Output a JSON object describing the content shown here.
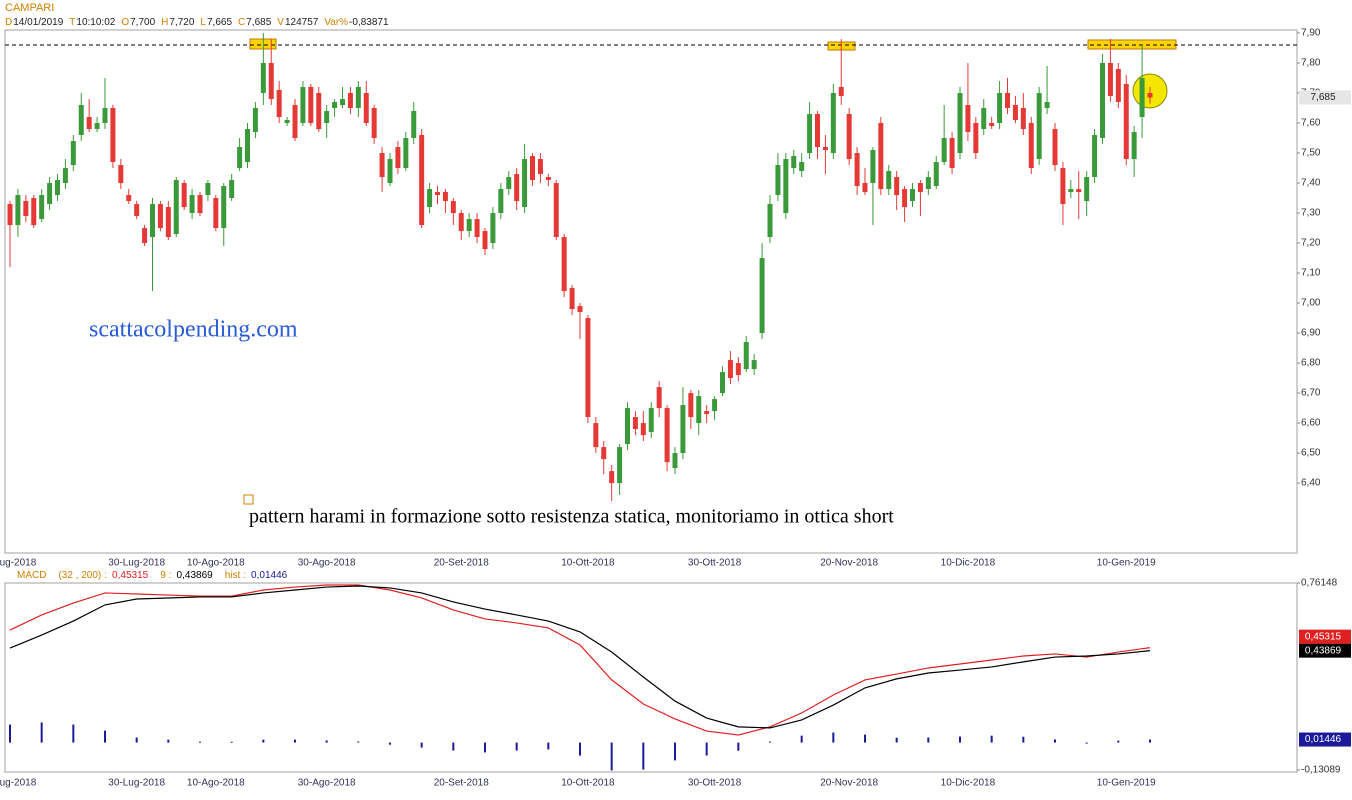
{
  "chart_data": [
    {
      "type": "candlestick",
      "title": "CAMPARI",
      "info": [
        {
          "key": "D",
          "value": "14/01/2019"
        },
        {
          "key": "T",
          "value": "10:10:02"
        },
        {
          "key": "O",
          "value": "7,700"
        },
        {
          "key": "H",
          "value": "7,720"
        },
        {
          "key": "L",
          "value": "7,665"
        },
        {
          "key": "C",
          "value": "7,685"
        },
        {
          "key": "V",
          "value": "124757"
        },
        {
          "key": "Var%",
          "value": "-0,83871"
        }
      ],
      "annotations": [
        "scattacolpending.com",
        "pattern harami in formazione sotto resistenza statica, monitoriamo in ottica short"
      ],
      "up_color": "#3a9a3a",
      "down_color": "#e53935",
      "resistance": 7.86,
      "last_price": {
        "value": 7.685,
        "label": "7,685"
      },
      "ylim": [
        6.167,
        7.9
      ],
      "yticks": [
        {
          "value": 7.9,
          "label": "7,90"
        },
        {
          "value": 7.8,
          "label": "7,80"
        },
        {
          "value": 7.7,
          "label": "7,70"
        },
        {
          "value": 7.6,
          "label": "7,60"
        },
        {
          "value": 7.5,
          "label": "7,50"
        },
        {
          "value": 7.4,
          "label": "7,40"
        },
        {
          "value": 7.3,
          "label": "7,30"
        },
        {
          "value": 7.2,
          "label": "7,20"
        },
        {
          "value": 7.1,
          "label": "7,10"
        },
        {
          "value": 7.0,
          "label": "7,00"
        },
        {
          "value": 6.9,
          "label": "6,90"
        },
        {
          "value": 6.8,
          "label": "6,80"
        },
        {
          "value": 6.7,
          "label": "6,70"
        },
        {
          "value": 6.6,
          "label": "6,60"
        },
        {
          "value": 6.5,
          "label": "6,50"
        },
        {
          "value": 6.4,
          "label": "6,40"
        }
      ],
      "categories": [
        null,
        "ug-2018",
        null,
        null,
        null,
        null,
        null,
        null,
        null,
        null,
        null,
        null,
        null,
        null,
        null,
        null,
        "30-Lug-2018",
        null,
        null,
        null,
        null,
        null,
        null,
        null,
        null,
        null,
        "10-Ago-2018",
        null,
        null,
        null,
        null,
        null,
        null,
        null,
        null,
        null,
        null,
        null,
        null,
        null,
        "30-Ago-2018",
        null,
        null,
        null,
        null,
        null,
        null,
        null,
        null,
        null,
        null,
        null,
        null,
        null,
        null,
        null,
        null,
        "20-Set-2018",
        null,
        null,
        null,
        null,
        null,
        null,
        null,
        null,
        null,
        null,
        null,
        null,
        null,
        null,
        null,
        "10-Ott-2018",
        null,
        null,
        null,
        null,
        null,
        null,
        null,
        null,
        null,
        null,
        null,
        null,
        null,
        null,
        null,
        "30-Ott-2018",
        null,
        null,
        null,
        null,
        null,
        null,
        null,
        null,
        null,
        null,
        null,
        null,
        null,
        null,
        null,
        null,
        "20-Nov-2018",
        null,
        null,
        null,
        null,
        null,
        null,
        null,
        null,
        null,
        null,
        null,
        null,
        null,
        null,
        "10-Dic-2018",
        null,
        null,
        null,
        null,
        null,
        null,
        null,
        null,
        null,
        null,
        null,
        null,
        null,
        null,
        null,
        null,
        null,
        null,
        null,
        "10-Gen-2019",
        null,
        null,
        null
      ],
      "candles": [
        [
          7.33,
          7.34,
          7.12,
          7.26
        ],
        [
          7.26,
          7.38,
          7.22,
          7.36
        ],
        [
          7.34,
          7.36,
          7.27,
          7.29
        ],
        [
          7.35,
          7.36,
          7.25,
          7.26
        ],
        [
          7.28,
          7.38,
          7.27,
          7.36
        ],
        [
          7.33,
          7.42,
          7.31,
          7.4
        ],
        [
          7.36,
          7.43,
          7.34,
          7.41
        ],
        [
          7.4,
          7.48,
          7.38,
          7.45
        ],
        [
          7.46,
          7.56,
          7.44,
          7.54
        ],
        [
          7.56,
          7.7,
          7.54,
          7.66
        ],
        [
          7.62,
          7.68,
          7.57,
          7.58
        ],
        [
          7.58,
          7.62,
          7.57,
          7.6
        ],
        [
          7.6,
          7.75,
          7.58,
          7.65
        ],
        [
          7.65,
          7.66,
          7.45,
          7.47
        ],
        [
          7.46,
          7.48,
          7.38,
          7.4
        ],
        [
          7.36,
          7.38,
          7.33,
          7.34
        ],
        [
          7.33,
          7.34,
          7.28,
          7.29
        ],
        [
          7.25,
          7.26,
          7.19,
          7.2
        ],
        [
          7.22,
          7.35,
          7.04,
          7.33
        ],
        [
          7.33,
          7.34,
          7.24,
          7.25
        ],
        [
          7.32,
          7.34,
          7.21,
          7.22
        ],
        [
          7.23,
          7.42,
          7.22,
          7.41
        ],
        [
          7.4,
          7.41,
          7.31,
          7.32
        ],
        [
          7.3,
          7.38,
          7.28,
          7.36
        ],
        [
          7.36,
          7.37,
          7.29,
          7.3
        ],
        [
          7.36,
          7.41,
          7.34,
          7.4
        ],
        [
          7.35,
          7.36,
          7.24,
          7.25
        ],
        [
          7.25,
          7.4,
          7.19,
          7.39
        ],
        [
          7.35,
          7.43,
          7.34,
          7.41
        ],
        [
          7.45,
          7.55,
          7.44,
          7.52
        ],
        [
          7.47,
          7.6,
          7.45,
          7.58
        ],
        [
          7.57,
          7.67,
          7.55,
          7.65
        ],
        [
          7.7,
          7.9,
          7.66,
          7.8
        ],
        [
          7.8,
          7.88,
          7.66,
          7.68
        ],
        [
          7.71,
          7.74,
          7.6,
          7.62
        ],
        [
          7.6,
          7.62,
          7.59,
          7.61
        ],
        [
          7.66,
          7.68,
          7.54,
          7.55
        ],
        [
          7.6,
          7.74,
          7.59,
          7.72
        ],
        [
          7.72,
          7.73,
          7.59,
          7.6
        ],
        [
          7.7,
          7.72,
          7.57,
          7.58
        ],
        [
          7.6,
          7.66,
          7.55,
          7.64
        ],
        [
          7.65,
          7.68,
          7.62,
          7.67
        ],
        [
          7.66,
          7.72,
          7.65,
          7.68
        ],
        [
          7.7,
          7.72,
          7.63,
          7.65
        ],
        [
          7.65,
          7.74,
          7.62,
          7.72
        ],
        [
          7.7,
          7.74,
          7.59,
          7.6
        ],
        [
          7.65,
          7.66,
          7.53,
          7.55
        ],
        [
          7.5,
          7.52,
          7.37,
          7.42
        ],
        [
          7.4,
          7.5,
          7.39,
          7.48
        ],
        [
          7.52,
          7.54,
          7.43,
          7.45
        ],
        [
          7.45,
          7.57,
          7.44,
          7.55
        ],
        [
          7.55,
          7.67,
          7.53,
          7.64
        ],
        [
          7.56,
          7.58,
          7.25,
          7.26
        ],
        [
          7.32,
          7.4,
          7.3,
          7.38
        ],
        [
          7.37,
          7.39,
          7.33,
          7.36
        ],
        [
          7.37,
          7.38,
          7.3,
          7.34
        ],
        [
          7.34,
          7.35,
          7.26,
          7.3
        ],
        [
          7.3,
          7.31,
          7.21,
          7.24
        ],
        [
          7.24,
          7.3,
          7.22,
          7.28
        ],
        [
          7.28,
          7.3,
          7.2,
          7.22
        ],
        [
          7.24,
          7.25,
          7.16,
          7.18
        ],
        [
          7.2,
          7.32,
          7.18,
          7.3
        ],
        [
          7.3,
          7.4,
          7.28,
          7.38
        ],
        [
          7.38,
          7.44,
          7.36,
          7.42
        ],
        [
          7.43,
          7.45,
          7.31,
          7.34
        ],
        [
          7.32,
          7.53,
          7.3,
          7.48
        ],
        [
          7.49,
          7.5,
          7.39,
          7.41
        ],
        [
          7.48,
          7.5,
          7.4,
          7.43
        ],
        [
          7.42,
          7.43,
          7.39,
          7.41
        ],
        [
          7.4,
          7.41,
          7.21,
          7.22
        ],
        [
          7.22,
          7.23,
          7.02,
          7.04
        ],
        [
          7.05,
          7.06,
          6.96,
          6.98
        ],
        [
          6.99,
          7.0,
          6.88,
          6.97
        ],
        [
          6.95,
          6.96,
          6.6,
          6.62
        ],
        [
          6.6,
          6.62,
          6.5,
          6.52
        ],
        [
          6.52,
          6.54,
          6.43,
          6.48
        ],
        [
          6.44,
          6.46,
          6.34,
          6.4
        ],
        [
          6.4,
          6.53,
          6.36,
          6.52
        ],
        [
          6.53,
          6.67,
          6.51,
          6.65
        ],
        [
          6.62,
          6.64,
          6.56,
          6.58
        ],
        [
          6.6,
          6.64,
          6.54,
          6.56
        ],
        [
          6.57,
          6.67,
          6.55,
          6.65
        ],
        [
          6.72,
          6.74,
          6.62,
          6.65
        ],
        [
          6.65,
          6.66,
          6.44,
          6.47
        ],
        [
          6.45,
          6.52,
          6.43,
          6.5
        ],
        [
          6.5,
          6.72,
          6.48,
          6.66
        ],
        [
          6.7,
          6.71,
          6.58,
          6.62
        ],
        [
          6.6,
          6.71,
          6.56,
          6.69
        ],
        [
          6.64,
          6.66,
          6.6,
          6.63
        ],
        [
          6.64,
          6.69,
          6.61,
          6.68
        ],
        [
          6.7,
          6.79,
          6.69,
          6.77
        ],
        [
          6.81,
          6.84,
          6.73,
          6.75
        ],
        [
          6.8,
          6.82,
          6.74,
          6.76
        ],
        [
          6.78,
          6.89,
          6.77,
          6.87
        ],
        [
          6.78,
          6.83,
          6.76,
          6.81
        ],
        [
          6.9,
          7.2,
          6.88,
          7.15
        ],
        [
          7.22,
          7.36,
          7.2,
          7.33
        ],
        [
          7.36,
          7.5,
          7.34,
          7.46
        ],
        [
          7.3,
          7.5,
          7.28,
          7.48
        ],
        [
          7.45,
          7.51,
          7.43,
          7.49
        ],
        [
          7.44,
          7.5,
          7.42,
          7.47
        ],
        [
          7.5,
          7.67,
          7.48,
          7.63
        ],
        [
          7.63,
          7.64,
          7.48,
          7.52
        ],
        [
          7.52,
          7.56,
          7.43,
          7.51
        ],
        [
          7.5,
          7.73,
          7.48,
          7.7
        ],
        [
          7.72,
          7.88,
          7.66,
          7.69
        ],
        [
          7.63,
          7.65,
          7.46,
          7.48
        ],
        [
          7.5,
          7.52,
          7.36,
          7.39
        ],
        [
          7.4,
          7.45,
          7.36,
          7.37
        ],
        [
          7.4,
          7.52,
          7.26,
          7.51
        ],
        [
          7.6,
          7.62,
          7.36,
          7.38
        ],
        [
          7.38,
          7.46,
          7.36,
          7.44
        ],
        [
          7.42,
          7.44,
          7.31,
          7.36
        ],
        [
          7.38,
          7.39,
          7.27,
          7.32
        ],
        [
          7.34,
          7.4,
          7.32,
          7.38
        ],
        [
          7.4,
          7.41,
          7.29,
          7.37
        ],
        [
          7.38,
          7.44,
          7.36,
          7.42
        ],
        [
          7.39,
          7.49,
          7.38,
          7.47
        ],
        [
          7.47,
          7.66,
          7.46,
          7.55
        ],
        [
          7.55,
          7.57,
          7.43,
          7.45
        ],
        [
          7.5,
          7.72,
          7.48,
          7.7
        ],
        [
          7.66,
          7.8,
          7.54,
          7.57
        ],
        [
          7.6,
          7.62,
          7.48,
          7.5
        ],
        [
          7.58,
          7.68,
          7.56,
          7.65
        ],
        [
          7.6,
          7.62,
          7.58,
          7.59
        ],
        [
          7.6,
          7.74,
          7.58,
          7.7
        ],
        [
          7.7,
          7.75,
          7.63,
          7.65
        ],
        [
          7.66,
          7.69,
          7.6,
          7.61
        ],
        [
          7.65,
          7.7,
          7.56,
          7.58
        ],
        [
          7.6,
          7.62,
          7.43,
          7.45
        ],
        [
          7.48,
          7.72,
          7.46,
          7.7
        ],
        [
          7.65,
          7.79,
          7.63,
          7.67
        ],
        [
          7.58,
          7.6,
          7.44,
          7.46
        ],
        [
          7.45,
          7.47,
          7.26,
          7.33
        ],
        [
          7.37,
          7.41,
          7.35,
          7.38
        ],
        [
          7.38,
          7.44,
          7.28,
          7.37
        ],
        [
          7.34,
          7.44,
          7.29,
          7.42
        ],
        [
          7.42,
          7.58,
          7.4,
          7.56
        ],
        [
          7.55,
          7.83,
          7.53,
          7.8
        ],
        [
          7.8,
          7.88,
          7.67,
          7.69
        ],
        [
          7.78,
          7.8,
          7.65,
          7.67
        ],
        [
          7.73,
          7.76,
          7.46,
          7.48
        ],
        [
          7.48,
          7.59,
          7.42,
          7.57
        ],
        [
          7.62,
          7.86,
          7.55,
          7.75
        ],
        [
          7.7,
          7.72,
          7.665,
          7.685
        ]
      ]
    },
    {
      "type": "macd",
      "title": "MACD",
      "params": "(32 , 200)",
      "separator": ":",
      "ylim": [
        -0.13089,
        0.76148
      ],
      "yticks": [
        {
          "value": 0.76148,
          "label": "0,76148"
        },
        {
          "value": -0.13089,
          "label": "-0,13089"
        }
      ],
      "series": [
        {
          "name": "MACD",
          "color": "#e02020",
          "last_label": "0,45315",
          "values": [
            0.537,
            0.609,
            0.666,
            0.714,
            0.709,
            0.704,
            0.699,
            0.699,
            0.728,
            0.742,
            0.752,
            0.752,
            0.728,
            0.69,
            0.633,
            0.59,
            0.571,
            0.547,
            0.466,
            0.299,
            0.184,
            0.113,
            0.055,
            0.036,
            0.075,
            0.141,
            0.227,
            0.299,
            0.327,
            0.356,
            0.375,
            0.394,
            0.413,
            0.423,
            0.408,
            0.432,
            0.45315
          ]
        },
        {
          "name": "9",
          "color": "#000000",
          "last_label": "0,43869",
          "values": [
            0.451,
            0.513,
            0.58,
            0.657,
            0.685,
            0.69,
            0.695,
            0.695,
            0.714,
            0.728,
            0.742,
            0.747,
            0.738,
            0.714,
            0.671,
            0.637,
            0.609,
            0.58,
            0.528,
            0.432,
            0.313,
            0.198,
            0.117,
            0.075,
            0.07,
            0.108,
            0.179,
            0.261,
            0.304,
            0.332,
            0.346,
            0.361,
            0.385,
            0.408,
            0.413,
            0.423,
            0.43869
          ]
        },
        {
          "name": "hist",
          "color": "#1a1a9a",
          "last_label": "0,01446",
          "values": [
            0.086,
            0.096,
            0.086,
            0.057,
            0.024,
            0.014,
            0.004,
            0.004,
            0.014,
            0.014,
            0.01,
            0.005,
            -0.01,
            -0.024,
            -0.038,
            -0.047,
            -0.038,
            -0.033,
            -0.062,
            -0.133,
            -0.129,
            -0.085,
            -0.062,
            -0.039,
            0.005,
            0.033,
            0.048,
            0.038,
            0.023,
            0.024,
            0.029,
            0.033,
            0.028,
            0.015,
            -0.005,
            0.009,
            0.01446
          ]
        }
      ]
    }
  ]
}
